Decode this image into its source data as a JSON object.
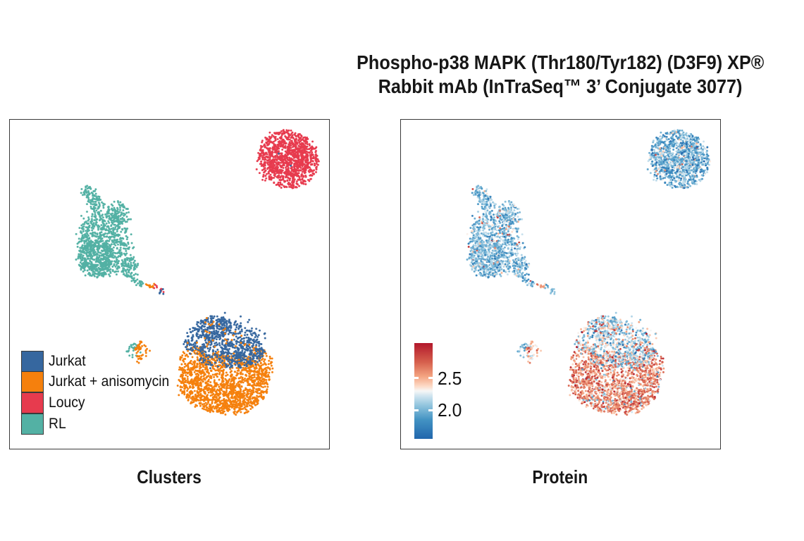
{
  "title": {
    "line1": "Phospho-p38 MAPK (Thr180/Tyr182) (D3F9) XP®",
    "line2": "Rabbit mAb (InTraSeq™ 3’ Conjugate 3077)"
  },
  "panels": [
    {
      "id": "clusters",
      "label": "Clusters"
    },
    {
      "id": "protein",
      "label": "Protein"
    }
  ],
  "legend": {
    "items": [
      {
        "label": "Jurkat",
        "color": "#36679F"
      },
      {
        "label": "Jurkat + anisomycin",
        "color": "#F5800D"
      },
      {
        "label": "Loucy",
        "color": "#E73B4E"
      },
      {
        "label": "RL",
        "color": "#53B1A4"
      }
    ],
    "swatch_border": "#3A3A3A"
  },
  "colorbar": {
    "ticks": [
      {
        "label": "2.5",
        "value": 2.5
      },
      {
        "label": "2.0",
        "value": 2.0
      }
    ]
  },
  "style_colors": {
    "panel_border": "#3A3A3A",
    "background": "#FFFFFF",
    "text": "#171717"
  },
  "chart_data": [
    {
      "type": "scatter",
      "title": "Clusters",
      "description": "UMAP embedding of single cells colored by sample cluster; panel coordinates are pixels in a 455x469 panel",
      "legend_position": "bottom-left",
      "clusters": [
        {
          "name": "Loucy",
          "series": "Loucy",
          "color": "#E73B4E",
          "protein": {
            "mean": 1.97,
            "sd": 0.2,
            "p_out": 0.04,
            "shift": 0.55
          },
          "parts": [
            {
              "kind": "blob",
              "cx": 395,
              "cy": 56,
              "rx": 44,
              "ry": 40,
              "rot": 0.4,
              "n": 820
            },
            {
              "kind": "blob",
              "cx": 395,
              "cy": 56,
              "rx": 30,
              "ry": 26,
              "n": 260
            },
            {
              "kind": "blob",
              "cx": 395,
              "cy": 56,
              "rx": 47,
              "ry": 42,
              "n": 120
            }
          ]
        },
        {
          "name": "Loucy-stray-jurkat",
          "series": "Jurkat",
          "color": "#36679F",
          "protein": {
            "mean": 2.0,
            "sd": 0.1
          },
          "parts": [
            {
              "kind": "blob",
              "cx": 382,
              "cy": 48,
              "rx": 2,
              "ry": 2,
              "n": 1
            },
            {
              "kind": "blob",
              "cx": 398,
              "cy": 66,
              "rx": 2,
              "ry": 2,
              "n": 1
            }
          ]
        },
        {
          "name": "RL",
          "series": "RL",
          "color": "#53B1A4",
          "protein": {
            "mean": 2.02,
            "sd": 0.17,
            "p_out": 0.02,
            "shift": 0.7
          },
          "parts": [
            {
              "kind": "blob",
              "cx": 114,
              "cy": 107,
              "rx": 11,
              "ry": 15,
              "rot": -0.5,
              "n": 70
            },
            {
              "kind": "blob",
              "cx": 126,
              "cy": 122,
              "rx": 9,
              "ry": 11,
              "n": 40
            },
            {
              "kind": "blob",
              "cx": 154,
              "cy": 133,
              "rx": 15,
              "ry": 17,
              "n": 110
            },
            {
              "kind": "blob",
              "cx": 133,
              "cy": 177,
              "rx": 36,
              "ry": 46,
              "n": 620
            },
            {
              "kind": "blob",
              "cx": 122,
              "cy": 197,
              "rx": 26,
              "ry": 26,
              "n": 320
            },
            {
              "kind": "blob",
              "cx": 170,
              "cy": 210,
              "rx": 11,
              "ry": 15,
              "n": 90
            },
            {
              "kind": "blob",
              "cx": 135,
              "cy": 172,
              "rx": 44,
              "ry": 56,
              "n": 110
            },
            {
              "kind": "chain",
              "x1": 175,
              "y1": 227,
              "x2": 192,
              "y2": 234,
              "n": 22,
              "j": 2.5
            }
          ]
        },
        {
          "name": "tail-anisomycin",
          "series": "Jurkat + anisomycin",
          "color": "#F5800D",
          "protein": {
            "mean": 2.5,
            "sd": 0.15
          },
          "parts": [
            {
              "kind": "chain",
              "x1": 194,
              "y1": 234,
              "x2": 206,
              "y2": 238,
              "n": 12,
              "j": 2.2
            }
          ]
        },
        {
          "name": "tail-loucy",
          "series": "Loucy",
          "color": "#E73B4E",
          "protein": {
            "mean": 2.0,
            "sd": 0.15
          },
          "parts": [
            {
              "kind": "chain",
              "x1": 207,
              "y1": 237,
              "x2": 218,
              "y2": 243,
              "n": 10,
              "j": 2.0
            }
          ]
        },
        {
          "name": "tail-tip-jurkat",
          "series": "Jurkat",
          "color": "#36679F",
          "protein": {
            "mean": 2.0,
            "sd": 0.15
          },
          "parts": [
            {
              "kind": "blob",
              "cx": 217,
              "cy": 245,
              "rx": 4,
              "ry": 4,
              "n": 6
            }
          ]
        },
        {
          "name": "small-island-rl",
          "series": "RL",
          "color": "#53B1A4",
          "protein": {
            "mean": 2.05,
            "sd": 0.15
          },
          "parts": [
            {
              "kind": "blob",
              "cx": 176,
              "cy": 328,
              "rx": 9,
              "ry": 10,
              "n": 26
            }
          ]
        },
        {
          "name": "small-island-anisomycin",
          "series": "Jurkat + anisomycin",
          "color": "#F5800D",
          "protein": {
            "mean": 2.45,
            "sd": 0.2
          },
          "parts": [
            {
              "kind": "blob",
              "cx": 188,
              "cy": 327,
              "rx": 10,
              "ry": 11,
              "n": 34
            },
            {
              "kind": "blob",
              "cx": 183,
              "cy": 340,
              "rx": 5,
              "ry": 6,
              "n": 8
            },
            {
              "kind": "blob",
              "cx": 184,
              "cy": 316,
              "rx": 3,
              "ry": 3,
              "n": 3
            }
          ]
        },
        {
          "name": "anisomycin-main",
          "series": "Jurkat + anisomycin",
          "color": "#F5800D",
          "protein": {
            "mean": 2.62,
            "sd": 0.18,
            "p_out": 0.08,
            "shift": -0.55
          },
          "parts": [
            {
              "kind": "blob",
              "cx": 305,
              "cy": 374,
              "rx": 64,
              "ry": 42,
              "n": 950
            },
            {
              "kind": "blob",
              "cx": 262,
              "cy": 349,
              "rx": 22,
              "ry": 28,
              "n": 170
            },
            {
              "kind": "blob",
              "cx": 310,
              "cy": 393,
              "rx": 46,
              "ry": 26,
              "n": 280
            },
            {
              "kind": "blob",
              "cx": 356,
              "cy": 352,
              "rx": 18,
              "ry": 27,
              "n": 120
            },
            {
              "kind": "blob",
              "cx": 305,
              "cy": 375,
              "rx": 68,
              "ry": 46,
              "n": 120
            }
          ]
        },
        {
          "name": "jurkat-main",
          "series": "Jurkat",
          "color": "#36679F",
          "protein": {
            "mean": 2.12,
            "sd": 0.22,
            "p_out": 0.07,
            "shift": 0.6
          },
          "parts": [
            {
              "kind": "blob",
              "cx": 303,
              "cy": 318,
              "rx": 55,
              "ry": 35,
              "rot": 0.1,
              "n": 500
            },
            {
              "kind": "blob",
              "cx": 288,
              "cy": 295,
              "rx": 26,
              "ry": 16,
              "n": 130
            },
            {
              "kind": "blob",
              "cx": 331,
              "cy": 330,
              "rx": 30,
              "ry": 21,
              "n": 170
            },
            {
              "kind": "blob",
              "cx": 305,
              "cy": 315,
              "rx": 60,
              "ry": 42,
              "n": 80
            }
          ]
        },
        {
          "name": "anisomycin-sprinkle",
          "series": "Jurkat + anisomycin",
          "color": "#F5800D",
          "protein": {
            "mean": 2.55,
            "sd": 0.2
          },
          "parts": [
            {
              "kind": "blob",
              "cx": 300,
              "cy": 325,
              "rx": 52,
              "ry": 28,
              "n": 55
            },
            {
              "kind": "blob",
              "cx": 287,
              "cy": 288,
              "rx": 12,
              "ry": 8,
              "n": 7
            }
          ]
        }
      ]
    },
    {
      "type": "scatter",
      "title": "Protein",
      "description": "Same UMAP embedding colored by phospho-p38 MAPK protein signal",
      "colormap": {
        "name": "RdBu reversed (high = red)",
        "vmin": 1.55,
        "vmax": 3.05,
        "stops": [
          {
            "t": 0.0,
            "color": "#2166AC"
          },
          {
            "t": 0.2,
            "color": "#4393C3"
          },
          {
            "t": 0.35,
            "color": "#92C5DE"
          },
          {
            "t": 0.45,
            "color": "#D1E5F0"
          },
          {
            "t": 0.5,
            "color": "#F7F7F7"
          },
          {
            "t": 0.55,
            "color": "#FDDBC7"
          },
          {
            "t": 0.65,
            "color": "#F4A582"
          },
          {
            "t": 0.8,
            "color": "#D6604D"
          },
          {
            "t": 1.0,
            "color": "#B2182B"
          }
        ]
      },
      "colorbar_ticks": [
        2.5,
        2.0
      ],
      "embedding": "same-as-clusters-panel"
    }
  ]
}
